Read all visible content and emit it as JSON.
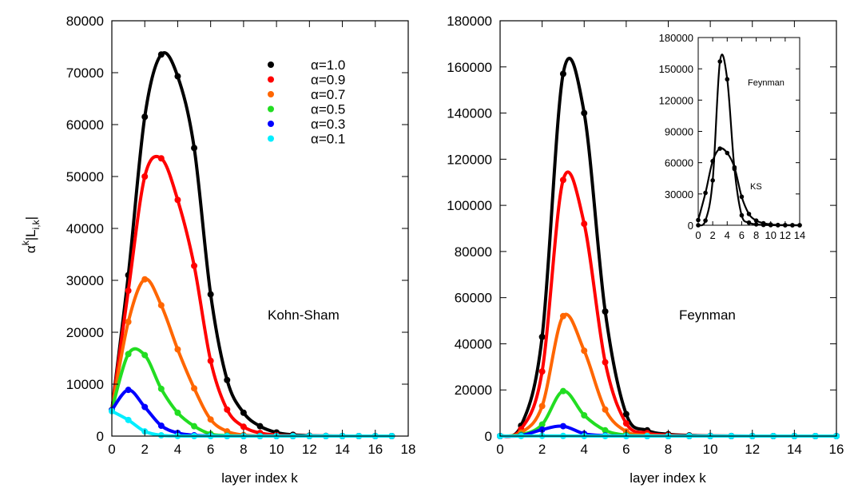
{
  "chart_data": [
    {
      "type": "line",
      "xlabel": "layer index k",
      "ylabel": "α^k|L_i,k|",
      "annotation": "Kohn-Sham",
      "xlim": [
        0,
        18
      ],
      "ylim": [
        0,
        80000
      ],
      "xticks": [
        0,
        2,
        4,
        6,
        8,
        10,
        12,
        14,
        16,
        18
      ],
      "yticks": [
        0,
        10000,
        20000,
        30000,
        40000,
        50000,
        60000,
        70000,
        80000
      ],
      "legend_position": "top-right",
      "series": [
        {
          "name": "α=1.0",
          "color": "#000000",
          "x": [
            0,
            1,
            2,
            3,
            4,
            5,
            6,
            7,
            8,
            9,
            10,
            11,
            12,
            13,
            14,
            15,
            16,
            17
          ],
          "values": [
            5000,
            31000,
            61500,
            73500,
            69300,
            55500,
            27300,
            10800,
            4500,
            1900,
            700,
            250,
            80,
            30,
            10,
            0,
            0,
            0
          ]
        },
        {
          "name": "α=0.9",
          "color": "#ff0000",
          "x": [
            0,
            1,
            2,
            3,
            4,
            5,
            6,
            7,
            8,
            9,
            10,
            11,
            12,
            13,
            14,
            15,
            16,
            17
          ],
          "values": [
            5000,
            28000,
            50000,
            53500,
            45500,
            32800,
            14500,
            5100,
            1800,
            600,
            200,
            60,
            20,
            0,
            0,
            0,
            0,
            0
          ]
        },
        {
          "name": "α=0.7",
          "color": "#ff6600",
          "x": [
            0,
            1,
            2,
            3,
            4,
            5,
            6,
            7,
            8,
            9,
            10,
            11,
            12,
            13,
            14,
            15,
            16,
            17
          ],
          "values": [
            5000,
            22000,
            30200,
            25200,
            16700,
            9200,
            3200,
            900,
            200,
            50,
            0,
            0,
            0,
            0,
            0,
            0,
            0,
            0
          ]
        },
        {
          "name": "α=0.5",
          "color": "#22dd22",
          "x": [
            0,
            1,
            2,
            3,
            4,
            5,
            6,
            7,
            8,
            9,
            10,
            11,
            12,
            13,
            14,
            15,
            16,
            17
          ],
          "values": [
            5000,
            15800,
            15600,
            9100,
            4500,
            1900,
            400,
            100,
            0,
            0,
            0,
            0,
            0,
            0,
            0,
            0,
            0,
            0
          ]
        },
        {
          "name": "α=0.3",
          "color": "#0000ff",
          "x": [
            0,
            1,
            2,
            3,
            4,
            5,
            6,
            7,
            8,
            9,
            10,
            11,
            12,
            13,
            14,
            15,
            16,
            17
          ],
          "values": [
            5000,
            8900,
            5600,
            2000,
            600,
            150,
            30,
            0,
            0,
            0,
            0,
            0,
            0,
            0,
            0,
            0,
            0,
            0
          ]
        },
        {
          "name": "α=0.1",
          "color": "#00eeff",
          "x": [
            0,
            1,
            2,
            3,
            4,
            5,
            6,
            7,
            8,
            9,
            10,
            11,
            12,
            13,
            14,
            15,
            16,
            17
          ],
          "values": [
            4800,
            3100,
            900,
            150,
            20,
            0,
            0,
            0,
            0,
            0,
            0,
            0,
            0,
            0,
            0,
            0,
            0,
            0
          ]
        }
      ]
    },
    {
      "type": "line",
      "xlabel": "layer index k",
      "ylabel": "",
      "annotation": "Feynman",
      "xlim": [
        0,
        16
      ],
      "ylim": [
        0,
        180000
      ],
      "xticks": [
        0,
        2,
        4,
        6,
        8,
        10,
        12,
        14,
        16
      ],
      "yticks": [
        0,
        20000,
        40000,
        60000,
        80000,
        100000,
        120000,
        140000,
        160000,
        180000
      ],
      "series": [
        {
          "name": "α=1.0",
          "color": "#000000",
          "x": [
            0,
            1,
            2,
            3,
            4,
            5,
            6,
            7,
            8,
            9,
            10,
            11,
            12,
            13,
            14,
            15,
            16
          ],
          "values": [
            0,
            4500,
            43000,
            157000,
            140000,
            54000,
            9500,
            2500,
            800,
            300,
            100,
            30,
            10,
            0,
            0,
            0,
            0
          ]
        },
        {
          "name": "α=0.9",
          "color": "#ff0000",
          "x": [
            0,
            1,
            2,
            3,
            4,
            5,
            6,
            7,
            8,
            9,
            10,
            11,
            12,
            13,
            14,
            15,
            16
          ],
          "values": [
            0,
            3000,
            28000,
            111000,
            92000,
            32000,
            5500,
            1300,
            400,
            100,
            30,
            0,
            0,
            0,
            0,
            0,
            0
          ]
        },
        {
          "name": "α=0.7",
          "color": "#ff6600",
          "x": [
            0,
            1,
            2,
            3,
            4,
            5,
            6,
            7,
            8,
            9,
            10,
            11,
            12,
            13,
            14,
            15,
            16
          ],
          "values": [
            0,
            1500,
            13000,
            52000,
            37000,
            11500,
            2000,
            400,
            100,
            0,
            0,
            0,
            0,
            0,
            0,
            0,
            0
          ]
        },
        {
          "name": "α=0.5",
          "color": "#22dd22",
          "x": [
            0,
            1,
            2,
            3,
            4,
            5,
            6,
            7,
            8,
            9,
            10,
            11,
            12,
            13,
            14,
            15,
            16
          ],
          "values": [
            0,
            600,
            5000,
            19500,
            9000,
            2500,
            400,
            50,
            0,
            0,
            0,
            0,
            0,
            0,
            0,
            0,
            0
          ]
        },
        {
          "name": "α=0.3",
          "color": "#0000ff",
          "x": [
            0,
            1,
            2,
            3,
            4,
            5,
            6,
            7,
            8,
            9,
            10,
            11,
            12,
            13,
            14,
            15,
            16
          ],
          "values": [
            0,
            200,
            2800,
            4300,
            1000,
            200,
            20,
            0,
            0,
            0,
            0,
            0,
            0,
            0,
            0,
            0,
            0
          ]
        },
        {
          "name": "α=0.1",
          "color": "#00eeff",
          "x": [
            0,
            1,
            2,
            3,
            4,
            5,
            6,
            7,
            8,
            9,
            10,
            11,
            12,
            13,
            14,
            15,
            16
          ],
          "values": [
            0,
            30,
            100,
            80,
            20,
            0,
            0,
            0,
            0,
            0,
            0,
            0,
            0,
            0,
            0,
            0,
            0
          ]
        }
      ],
      "inset": {
        "xlim": [
          0,
          14
        ],
        "ylim": [
          0,
          180000
        ],
        "xticks": [
          0,
          2,
          4,
          6,
          8,
          10,
          12,
          14
        ],
        "yticks": [
          0,
          30000,
          60000,
          90000,
          120000,
          150000,
          180000
        ],
        "series": [
          {
            "name": "Feynman",
            "color": "#000000",
            "x": [
              0,
              1,
              2,
              3,
              4,
              5,
              6,
              7,
              8,
              9,
              10,
              11,
              12,
              13,
              14
            ],
            "values": [
              0,
              4500,
              43000,
              157000,
              140000,
              54000,
              9500,
              2500,
              800,
              300,
              100,
              30,
              10,
              0,
              0
            ]
          },
          {
            "name": "KS",
            "color": "#000000",
            "x": [
              0,
              1,
              2,
              3,
              4,
              5,
              6,
              7,
              8,
              9,
              10,
              11,
              12,
              13,
              14
            ],
            "values": [
              5000,
              31000,
              61500,
              73500,
              69300,
              55500,
              27300,
              10800,
              4500,
              1900,
              700,
              250,
              80,
              30,
              10
            ]
          }
        ]
      }
    }
  ]
}
